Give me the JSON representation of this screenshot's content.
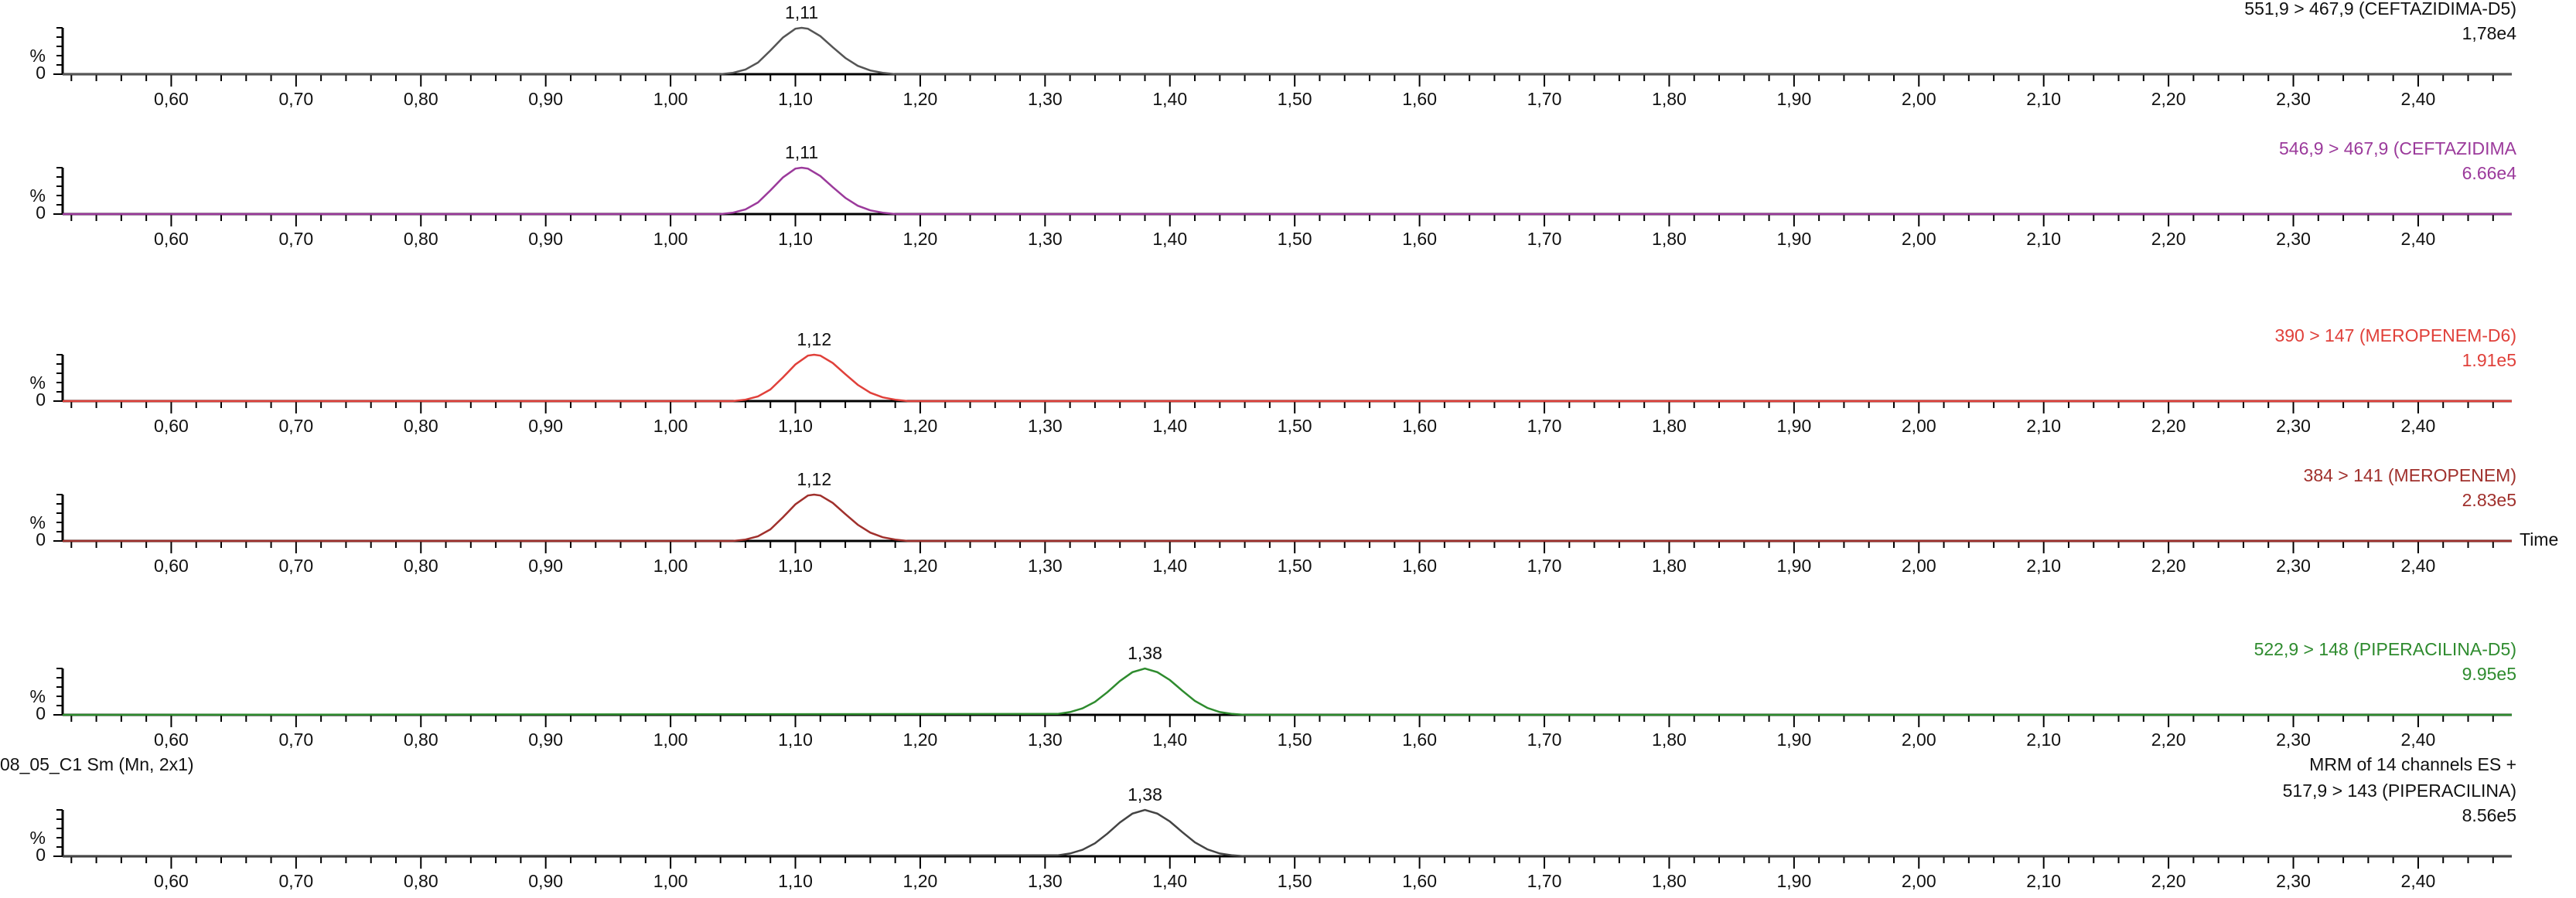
{
  "chart_data": [
    {
      "type": "line",
      "trace_label": "551,9 > 467,9 (CEFTAZIDIMA-D5)",
      "max_intensity": "1,78e4",
      "ylabel": "%",
      "color": "#555555",
      "label_color": "#111111",
      "x": [
        0.513,
        1.04,
        1.05,
        1.06,
        1.07,
        1.08,
        1.09,
        1.1,
        1.105,
        1.11,
        1.12,
        1.13,
        1.14,
        1.15,
        1.16,
        1.17,
        1.18,
        2.475
      ],
      "values": [
        0,
        0,
        3,
        10,
        25,
        51,
        79,
        98,
        100,
        98,
        82,
        58,
        35,
        18,
        8,
        3,
        0,
        0
      ],
      "annotations": [
        {
          "text": "1,11",
          "x": 1.105,
          "y": 100
        }
      ],
      "xlim": [
        0.513,
        2.475
      ],
      "ylim": [
        0,
        100
      ],
      "yticks": [
        0
      ],
      "xticks": [
        {
          "value": 0.6,
          "label": "0,60"
        },
        {
          "value": 0.7,
          "label": "0,70"
        },
        {
          "value": 0.8,
          "label": "0,80"
        },
        {
          "value": 0.9,
          "label": "0,90"
        },
        {
          "value": 1.0,
          "label": "1,00"
        },
        {
          "value": 1.1,
          "label": "1,10"
        },
        {
          "value": 1.2,
          "label": "1,20"
        },
        {
          "value": 1.3,
          "label": "1,30"
        },
        {
          "value": 1.4,
          "label": "1,40"
        },
        {
          "value": 1.5,
          "label": "1,50"
        },
        {
          "value": 1.6,
          "label": "1,60"
        },
        {
          "value": 1.7,
          "label": "1,70"
        },
        {
          "value": 1.8,
          "label": "1,80"
        },
        {
          "value": 1.9,
          "label": "1,90"
        },
        {
          "value": 2.0,
          "label": "2,00"
        },
        {
          "value": 2.1,
          "label": "2,10"
        },
        {
          "value": 2.2,
          "label": "2,20"
        },
        {
          "value": 2.3,
          "label": "2,30"
        },
        {
          "value": 2.4,
          "label": "2,40"
        }
      ]
    },
    {
      "type": "line",
      "trace_label": "546,9 > 467,9 (CEFTAZIDIMA",
      "max_intensity": "6.66e4",
      "ylabel": "%",
      "color": "#9b3a9b",
      "label_color": "#9b3a9b",
      "x": [
        0.513,
        1.04,
        1.05,
        1.06,
        1.07,
        1.08,
        1.09,
        1.1,
        1.105,
        1.11,
        1.12,
        1.13,
        1.14,
        1.15,
        1.16,
        1.17,
        1.18,
        2.475
      ],
      "values": [
        0,
        0,
        3,
        10,
        25,
        51,
        79,
        98,
        100,
        98,
        82,
        58,
        35,
        18,
        8,
        3,
        0,
        0
      ],
      "annotations": [
        {
          "text": "1,11",
          "x": 1.105,
          "y": 100
        }
      ],
      "xlim": [
        0.513,
        2.475
      ],
      "ylim": [
        0,
        100
      ],
      "yticks": [
        0
      ],
      "xticks": [
        {
          "value": 0.6,
          "label": "0,60"
        },
        {
          "value": 0.7,
          "label": "0,70"
        },
        {
          "value": 0.8,
          "label": "0,80"
        },
        {
          "value": 0.9,
          "label": "0,90"
        },
        {
          "value": 1.0,
          "label": "1,00"
        },
        {
          "value": 1.1,
          "label": "1,10"
        },
        {
          "value": 1.2,
          "label": "1,20"
        },
        {
          "value": 1.3,
          "label": "1,30"
        },
        {
          "value": 1.4,
          "label": "1,40"
        },
        {
          "value": 1.5,
          "label": "1,50"
        },
        {
          "value": 1.6,
          "label": "1,60"
        },
        {
          "value": 1.7,
          "label": "1,70"
        },
        {
          "value": 1.8,
          "label": "1,80"
        },
        {
          "value": 1.9,
          "label": "1,90"
        },
        {
          "value": 2.0,
          "label": "2,00"
        },
        {
          "value": 2.1,
          "label": "2,10"
        },
        {
          "value": 2.2,
          "label": "2,20"
        },
        {
          "value": 2.3,
          "label": "2,30"
        },
        {
          "value": 2.4,
          "label": "2,40"
        }
      ]
    },
    {
      "type": "line",
      "trace_label": "390 > 147 (MEROPENEM-D6)",
      "max_intensity": "1.91e5",
      "ylabel": "%",
      "color": "#e0403a",
      "label_color": "#e0403a",
      "x": [
        0.513,
        1.05,
        1.06,
        1.07,
        1.08,
        1.09,
        1.1,
        1.11,
        1.115,
        1.12,
        1.13,
        1.14,
        1.15,
        1.16,
        1.17,
        1.18,
        1.19,
        2.475
      ],
      "values": [
        0,
        0,
        3,
        10,
        25,
        51,
        79,
        98,
        100,
        98,
        82,
        58,
        35,
        18,
        8,
        3,
        0,
        0
      ],
      "annotations": [
        {
          "text": "1,12",
          "x": 1.115,
          "y": 100
        }
      ],
      "xlim": [
        0.513,
        2.475
      ],
      "ylim": [
        0,
        100
      ],
      "yticks": [
        0
      ],
      "xticks": [
        {
          "value": 0.6,
          "label": "0,60"
        },
        {
          "value": 0.7,
          "label": "0,70"
        },
        {
          "value": 0.8,
          "label": "0,80"
        },
        {
          "value": 0.9,
          "label": "0,90"
        },
        {
          "value": 1.0,
          "label": "1,00"
        },
        {
          "value": 1.1,
          "label": "1,10"
        },
        {
          "value": 1.2,
          "label": "1,20"
        },
        {
          "value": 1.3,
          "label": "1,30"
        },
        {
          "value": 1.4,
          "label": "1,40"
        },
        {
          "value": 1.5,
          "label": "1,50"
        },
        {
          "value": 1.6,
          "label": "1,60"
        },
        {
          "value": 1.7,
          "label": "1,70"
        },
        {
          "value": 1.8,
          "label": "1,80"
        },
        {
          "value": 1.9,
          "label": "1,90"
        },
        {
          "value": 2.0,
          "label": "2,00"
        },
        {
          "value": 2.1,
          "label": "2,10"
        },
        {
          "value": 2.2,
          "label": "2,20"
        },
        {
          "value": 2.3,
          "label": "2,30"
        },
        {
          "value": 2.4,
          "label": "2,40"
        }
      ]
    },
    {
      "type": "line",
      "trace_label": "384 > 141 (MEROPENEM)",
      "max_intensity": "2.83e5",
      "ylabel": "%",
      "xlabel": "Time",
      "color": "#a0302c",
      "label_color": "#a0302c",
      "x": [
        0.513,
        1.05,
        1.06,
        1.07,
        1.08,
        1.09,
        1.1,
        1.11,
        1.115,
        1.12,
        1.13,
        1.14,
        1.15,
        1.16,
        1.17,
        1.18,
        1.19,
        2.475
      ],
      "values": [
        0,
        0,
        3,
        10,
        25,
        51,
        79,
        98,
        100,
        98,
        82,
        58,
        35,
        18,
        8,
        3,
        0,
        0
      ],
      "annotations": [
        {
          "text": "1,12",
          "x": 1.115,
          "y": 100
        }
      ],
      "xlim": [
        0.513,
        2.475
      ],
      "ylim": [
        0,
        100
      ],
      "yticks": [
        0
      ],
      "xticks": [
        {
          "value": 0.6,
          "label": "0,60"
        },
        {
          "value": 0.7,
          "label": "0,70"
        },
        {
          "value": 0.8,
          "label": "0,80"
        },
        {
          "value": 0.9,
          "label": "0,90"
        },
        {
          "value": 1.0,
          "label": "1,00"
        },
        {
          "value": 1.1,
          "label": "1,10"
        },
        {
          "value": 1.2,
          "label": "1,20"
        },
        {
          "value": 1.3,
          "label": "1,30"
        },
        {
          "value": 1.4,
          "label": "1,40"
        },
        {
          "value": 1.5,
          "label": "1,50"
        },
        {
          "value": 1.6,
          "label": "1,60"
        },
        {
          "value": 1.7,
          "label": "1,70"
        },
        {
          "value": 1.8,
          "label": "1,80"
        },
        {
          "value": 1.9,
          "label": "1,90"
        },
        {
          "value": 2.0,
          "label": "2,00"
        },
        {
          "value": 2.1,
          "label": "2,10"
        },
        {
          "value": 2.2,
          "label": "2,20"
        },
        {
          "value": 2.3,
          "label": "2,30"
        },
        {
          "value": 2.4,
          "label": "2,40"
        }
      ]
    },
    {
      "type": "line",
      "trace_label": "522,9 > 148 (PIPERACILINA-D5)",
      "max_intensity": "9.95e5",
      "ylabel": "%",
      "color": "#2e8b2e",
      "label_color": "#2e8b2e",
      "x": [
        0.513,
        1.31,
        1.32,
        1.33,
        1.34,
        1.35,
        1.36,
        1.37,
        1.38,
        1.39,
        1.4,
        1.41,
        1.42,
        1.43,
        1.44,
        1.45,
        1.46,
        2.475
      ],
      "values": [
        0,
        2,
        6,
        14,
        28,
        49,
        73,
        92,
        100,
        92,
        75,
        52,
        30,
        15,
        6,
        2,
        0,
        0
      ],
      "annotations": [
        {
          "text": "1,38",
          "x": 1.38,
          "y": 100
        }
      ],
      "xlim": [
        0.513,
        2.475
      ],
      "ylim": [
        0,
        100
      ],
      "yticks": [
        0
      ],
      "xticks": [
        {
          "value": 0.6,
          "label": "0,60"
        },
        {
          "value": 0.7,
          "label": "0,70"
        },
        {
          "value": 0.8,
          "label": "0,80"
        },
        {
          "value": 0.9,
          "label": "0,90"
        },
        {
          "value": 1.0,
          "label": "1,00"
        },
        {
          "value": 1.1,
          "label": "1,10"
        },
        {
          "value": 1.2,
          "label": "1,20"
        },
        {
          "value": 1.3,
          "label": "1,30"
        },
        {
          "value": 1.4,
          "label": "1,40"
        },
        {
          "value": 1.5,
          "label": "1,50"
        },
        {
          "value": 1.6,
          "label": "1,60"
        },
        {
          "value": 1.7,
          "label": "1,70"
        },
        {
          "value": 1.8,
          "label": "1,80"
        },
        {
          "value": 1.9,
          "label": "1,90"
        },
        {
          "value": 2.0,
          "label": "2,00"
        },
        {
          "value": 2.1,
          "label": "2,10"
        },
        {
          "value": 2.2,
          "label": "2,20"
        },
        {
          "value": 2.3,
          "label": "2,30"
        },
        {
          "value": 2.4,
          "label": "2,40"
        }
      ]
    },
    {
      "type": "line",
      "header_left": "08_05_C1 Sm (Mn, 2x1)",
      "header_right": "MRM of 14 channels ES +",
      "trace_label": "517,9 > 143 (PIPERACILINA)",
      "max_intensity": "8.56e5",
      "ylabel": "%",
      "color": "#444444",
      "label_color": "#111111",
      "x": [
        0.513,
        1.31,
        1.32,
        1.33,
        1.34,
        1.35,
        1.36,
        1.37,
        1.38,
        1.39,
        1.4,
        1.41,
        1.42,
        1.43,
        1.44,
        1.45,
        1.46,
        2.475
      ],
      "values": [
        0,
        2,
        6,
        14,
        28,
        49,
        73,
        92,
        100,
        92,
        75,
        52,
        30,
        15,
        6,
        2,
        0,
        0
      ],
      "annotations": [
        {
          "text": "1,38",
          "x": 1.38,
          "y": 100
        }
      ],
      "xlim": [
        0.513,
        2.475
      ],
      "ylim": [
        0,
        100
      ],
      "yticks": [
        0
      ],
      "xticks": [
        {
          "value": 0.6,
          "label": "0,60"
        },
        {
          "value": 0.7,
          "label": "0,70"
        },
        {
          "value": 0.8,
          "label": "0,80"
        },
        {
          "value": 0.9,
          "label": "0,90"
        },
        {
          "value": 1.0,
          "label": "1,00"
        },
        {
          "value": 1.1,
          "label": "1,10"
        },
        {
          "value": 1.2,
          "label": "1,20"
        },
        {
          "value": 1.3,
          "label": "1,30"
        },
        {
          "value": 1.4,
          "label": "1,40"
        },
        {
          "value": 1.5,
          "label": "1,50"
        },
        {
          "value": 1.6,
          "label": "1,60"
        },
        {
          "value": 1.7,
          "label": "1,70"
        },
        {
          "value": 1.8,
          "label": "1,80"
        },
        {
          "value": 1.9,
          "label": "1,90"
        },
        {
          "value": 2.0,
          "label": "2,00"
        },
        {
          "value": 2.1,
          "label": "2,10"
        },
        {
          "value": 2.2,
          "label": "2,20"
        },
        {
          "value": 2.3,
          "label": "2,30"
        },
        {
          "value": 2.4,
          "label": "2,40"
        }
      ]
    }
  ]
}
